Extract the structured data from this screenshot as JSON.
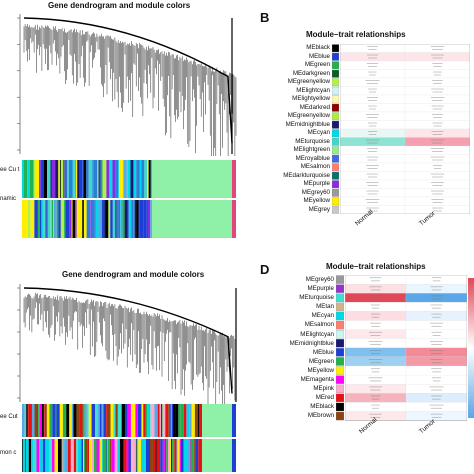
{
  "panels": {
    "A": {
      "title": "Gene dendrogram and module colors",
      "row_labels": [
        "ee Cu t",
        "namic"
      ]
    },
    "B": {
      "letter": "B",
      "title": "Module–trait relationships",
      "traits": [
        "Normal",
        "Tumor"
      ],
      "modules": [
        {
          "name": "MEblack",
          "color": "#000000"
        },
        {
          "name": "MEblue",
          "color": "#1c3fd6"
        },
        {
          "name": "MEgreen",
          "color": "#22b14c"
        },
        {
          "name": "MEdarkgreen",
          "color": "#0e5c2a"
        },
        {
          "name": "MEgreenyellow",
          "color": "#b4f04a"
        },
        {
          "name": "MElightcyan",
          "color": "#c8f5f5"
        },
        {
          "name": "MElightyellow",
          "color": "#fff7b0"
        },
        {
          "name": "MEdarkred",
          "color": "#8b0000"
        },
        {
          "name": "MEgreenyellow",
          "color": "#aaee44"
        },
        {
          "name": "MEmidnightblue",
          "color": "#191970"
        },
        {
          "name": "MEcyan",
          "color": "#00d8e8"
        },
        {
          "name": "MEturquoise",
          "color": "#3fd8c8"
        },
        {
          "name": "MElightgreen",
          "color": "#90ee90"
        },
        {
          "name": "MEroyalblue",
          "color": "#4169e1"
        },
        {
          "name": "MEsalmon",
          "color": "#fa8072"
        },
        {
          "name": "MEdarkturquoise",
          "color": "#0a6f6f"
        },
        {
          "name": "MEpurple",
          "color": "#8a2be2"
        },
        {
          "name": "MEgrey60",
          "color": "#999999"
        },
        {
          "name": "MEyellow",
          "color": "#ffee00"
        },
        {
          "name": "MEgrey",
          "color": "#c8c8c8"
        }
      ]
    },
    "C": {
      "title": "Gene dendrogram and module colors",
      "row_labels": [
        "ee Cut",
        "mon c"
      ]
    },
    "D": {
      "letter": "D",
      "title": "Module–trait relationships",
      "traits": [
        "Normal",
        "Tumor"
      ],
      "modules": [
        {
          "name": "MEgrey60",
          "color": "#999999"
        },
        {
          "name": "MEpurple",
          "color": "#9b30d0"
        },
        {
          "name": "MEturquoise",
          "color": "#40e0d0"
        },
        {
          "name": "MEtan",
          "color": "#d2b48c"
        },
        {
          "name": "MEcyan",
          "color": "#00d8e8"
        },
        {
          "name": "MEsalmon",
          "color": "#fa8072"
        },
        {
          "name": "MElightcyan",
          "color": "#c8f5f5"
        },
        {
          "name": "MEmidnightblue",
          "color": "#191970"
        },
        {
          "name": "MEblue",
          "color": "#1c3fd6"
        },
        {
          "name": "MEgreen",
          "color": "#22b14c"
        },
        {
          "name": "MEyellow",
          "color": "#ffee00"
        },
        {
          "name": "MEmagenta",
          "color": "#ff00ff"
        },
        {
          "name": "MEpink",
          "color": "#ffaacc"
        },
        {
          "name": "MEred",
          "color": "#e81010"
        },
        {
          "name": "MEblack",
          "color": "#000000"
        },
        {
          "name": "MEbrown",
          "color": "#8b4513"
        }
      ]
    }
  },
  "heat_palette": {
    "negative": "#5aa6e6",
    "neutral": "#ffffff",
    "positive": "#e04858"
  },
  "colorbar": {
    "colors": [
      "#e04858",
      "#ffffff",
      "#5aa6e6"
    ]
  }
}
